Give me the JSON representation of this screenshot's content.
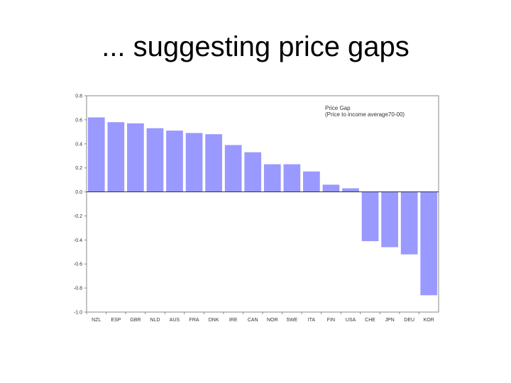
{
  "slide": {
    "title": "... suggesting price gaps"
  },
  "chart_data": {
    "type": "bar",
    "title": "",
    "xlabel": "",
    "ylabel": "",
    "legend_lines": [
      "Price Gap",
      "(Price to income average70-00)"
    ],
    "legend_position": "top-right",
    "categories": [
      "NZL",
      "ESP",
      "GBR",
      "NLD",
      "AUS",
      "FRA",
      "DNK",
      "IRE",
      "CAN",
      "NOR",
      "SWE",
      "ITA",
      "FIN",
      "USA",
      "CHE",
      "JPN",
      "DEU",
      "KOR"
    ],
    "series": [
      {
        "name": "Price Gap",
        "values": [
          0.62,
          0.58,
          0.57,
          0.53,
          0.51,
          0.49,
          0.48,
          0.39,
          0.33,
          0.23,
          0.23,
          0.17,
          0.06,
          0.03,
          -0.41,
          -0.46,
          -0.52,
          -0.86
        ]
      }
    ],
    "ylim": [
      -1.0,
      0.8
    ],
    "yticks": [
      "0.8",
      "0.6",
      "0.4",
      "0.2",
      "0.0",
      "-0.2",
      "-0.4",
      "-0.6",
      "-0.8",
      "-1.0"
    ],
    "grid": false,
    "bar_color": "#9999ff"
  }
}
